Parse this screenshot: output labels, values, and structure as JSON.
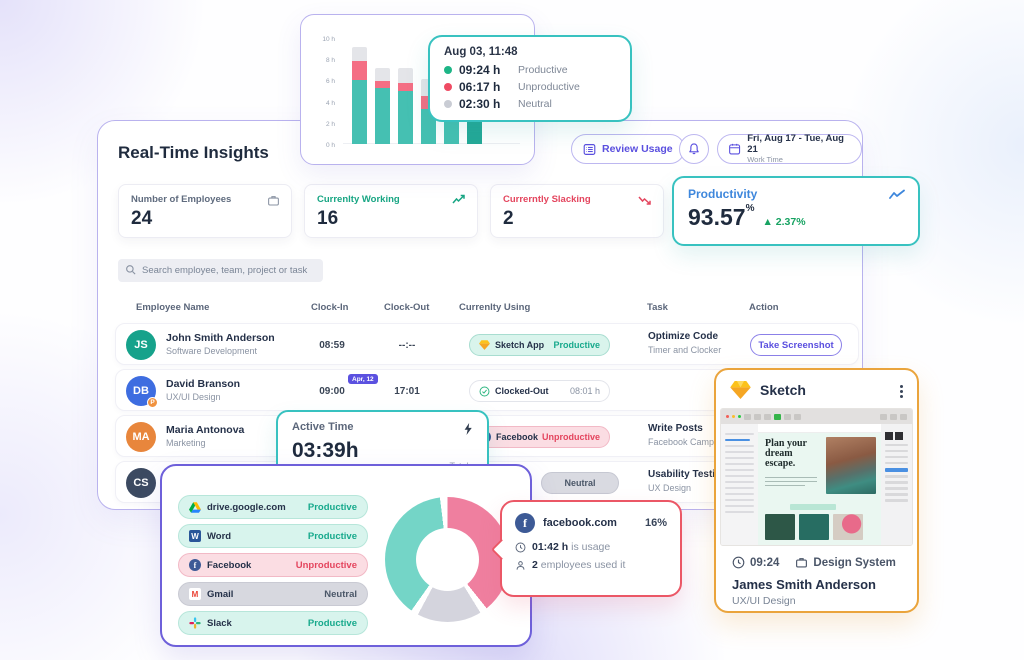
{
  "colors": {
    "accent_purple": "#5a4fdf",
    "accent_teal": "#38c2c0",
    "accent_orange": "#eaa43c",
    "accent_red": "#eb5766",
    "productive": "#1db586",
    "unproductive": "#ef4b63",
    "neutral": "#c9ccd4",
    "productivity_blue": "#3e87dc"
  },
  "top_chart": {
    "yticks": [
      "10 h",
      "8 h",
      "6 h",
      "4 h",
      "2 h",
      "0 h"
    ],
    "tooltip": {
      "date": "Aug 03, 11:48",
      "rows": [
        {
          "time": "09:24 h",
          "label": "Productive"
        },
        {
          "time": "06:17 h",
          "label": "Unproductive"
        },
        {
          "time": "02:30 h",
          "label": "Neutral"
        }
      ]
    }
  },
  "chart_data": [
    {
      "type": "bar",
      "stacked": true,
      "categories": [
        "1",
        "2",
        "3",
        "4",
        "5",
        "6"
      ],
      "x_labels_hidden": true,
      "series": [
        {
          "name": "Productive",
          "color": "#45c0b2",
          "values": [
            6.0,
            5.3,
            5.0,
            3.3,
            5.2,
            4.2
          ]
        },
        {
          "name": "Unproductive",
          "color": "#f46e84",
          "values": [
            1.8,
            0.65,
            0.75,
            1.2,
            1.1,
            0.8
          ]
        },
        {
          "name": "Neutral",
          "color": "#e4e5e9",
          "values": [
            1.4,
            1.25,
            1.45,
            1.6,
            1.0,
            0.9
          ]
        }
      ],
      "ylabel": "hours",
      "ylim": [
        0,
        10
      ],
      "yticks": [
        "0 h",
        "2 h",
        "4 h",
        "6 h",
        "8 h",
        "10 h"
      ],
      "highlight_bar": 5,
      "highlight_color": "#23a897",
      "note": "tops of bars 4-6 occluded by tooltip overlay"
    },
    {
      "type": "pie",
      "donut": true,
      "segments": [
        {
          "label": "Unproductive",
          "value": 40,
          "color": "#ef7f9f"
        },
        {
          "label": "Neutral",
          "value": 17,
          "color": "#d4d4dd"
        },
        {
          "label": "Productive",
          "value": 39,
          "color": "#74d5c7"
        }
      ],
      "highlight": {
        "label": "facebook.com",
        "pct": "16%"
      },
      "legend_position": "left"
    }
  ],
  "insights": {
    "title": "Real-Time Insights",
    "review_label": "Review Usage",
    "date_range": "Fri, Aug 17 - Tue, Aug 21",
    "date_sub": "Work Time"
  },
  "stats": [
    {
      "label": "Number of Employees",
      "value": "24"
    },
    {
      "label": "Currenlty Working",
      "value": "16"
    },
    {
      "label": "Currerntly Slacking",
      "value": "2"
    }
  ],
  "productivity": {
    "label": "Productivity",
    "value": "93.57",
    "unit": "%",
    "delta_icon": "▲",
    "delta": "2.37%"
  },
  "search": {
    "placeholder": "Search employee, team, project or task"
  },
  "table": {
    "headers": [
      "Employee Name",
      "Clock-In",
      "Clock-Out",
      "Currenlty Using",
      "Task",
      "Action"
    ],
    "rows": [
      {
        "initials": "JS",
        "name": "John Smith Anderson",
        "dept": "Software Development",
        "clock_in": "08:59",
        "clock_out": "--:--",
        "app": "Sketch App",
        "app_status": "Productive",
        "task": "Optimize Code",
        "task_sub": "Timer and Clocker",
        "action": "Take Screenshot"
      },
      {
        "initials": "DB",
        "badge_letter": "P",
        "name": "David Branson",
        "dept": "UX/UI Design",
        "clock_in": "09:00",
        "clock_in_badge": "Apr, 12",
        "clock_out": "17:01",
        "pill": "Clocked-Out",
        "pill_extra": "08:01 h"
      },
      {
        "initials": "MA",
        "name": "Maria Antonova",
        "dept": "Marketing",
        "app": "Facebook",
        "app_status": "Unproductive",
        "task": "Write Posts",
        "task_sub": "Facebook Campaign"
      },
      {
        "initials": "CS",
        "status": "Neutral",
        "task": "Usability Testing",
        "task_sub": "UX Design"
      }
    ]
  },
  "active_time": {
    "label": "Active Time",
    "value": "03:39h",
    "footnote": "Totals"
  },
  "app_usage": [
    {
      "name": "drive.google.com",
      "status": "Productive"
    },
    {
      "name": "Word",
      "status": "Productive"
    },
    {
      "name": "Facebook",
      "status": "Unproductive"
    },
    {
      "name": "Gmail",
      "status": "Neutral"
    },
    {
      "name": "Slack",
      "status": "Productive"
    }
  ],
  "fb_tooltip": {
    "name": "facebook.com",
    "pct": "16%",
    "usage_value": "01:42 h",
    "usage_label": "is usage",
    "employees_value": "2",
    "employees_label": "employees used it"
  },
  "sketch": {
    "title": "Sketch",
    "time": "09:24",
    "project": "Design System",
    "person": "James Smith Anderson",
    "role": "UX/UI Design",
    "thumb_heading": "Plan your dream escape."
  }
}
